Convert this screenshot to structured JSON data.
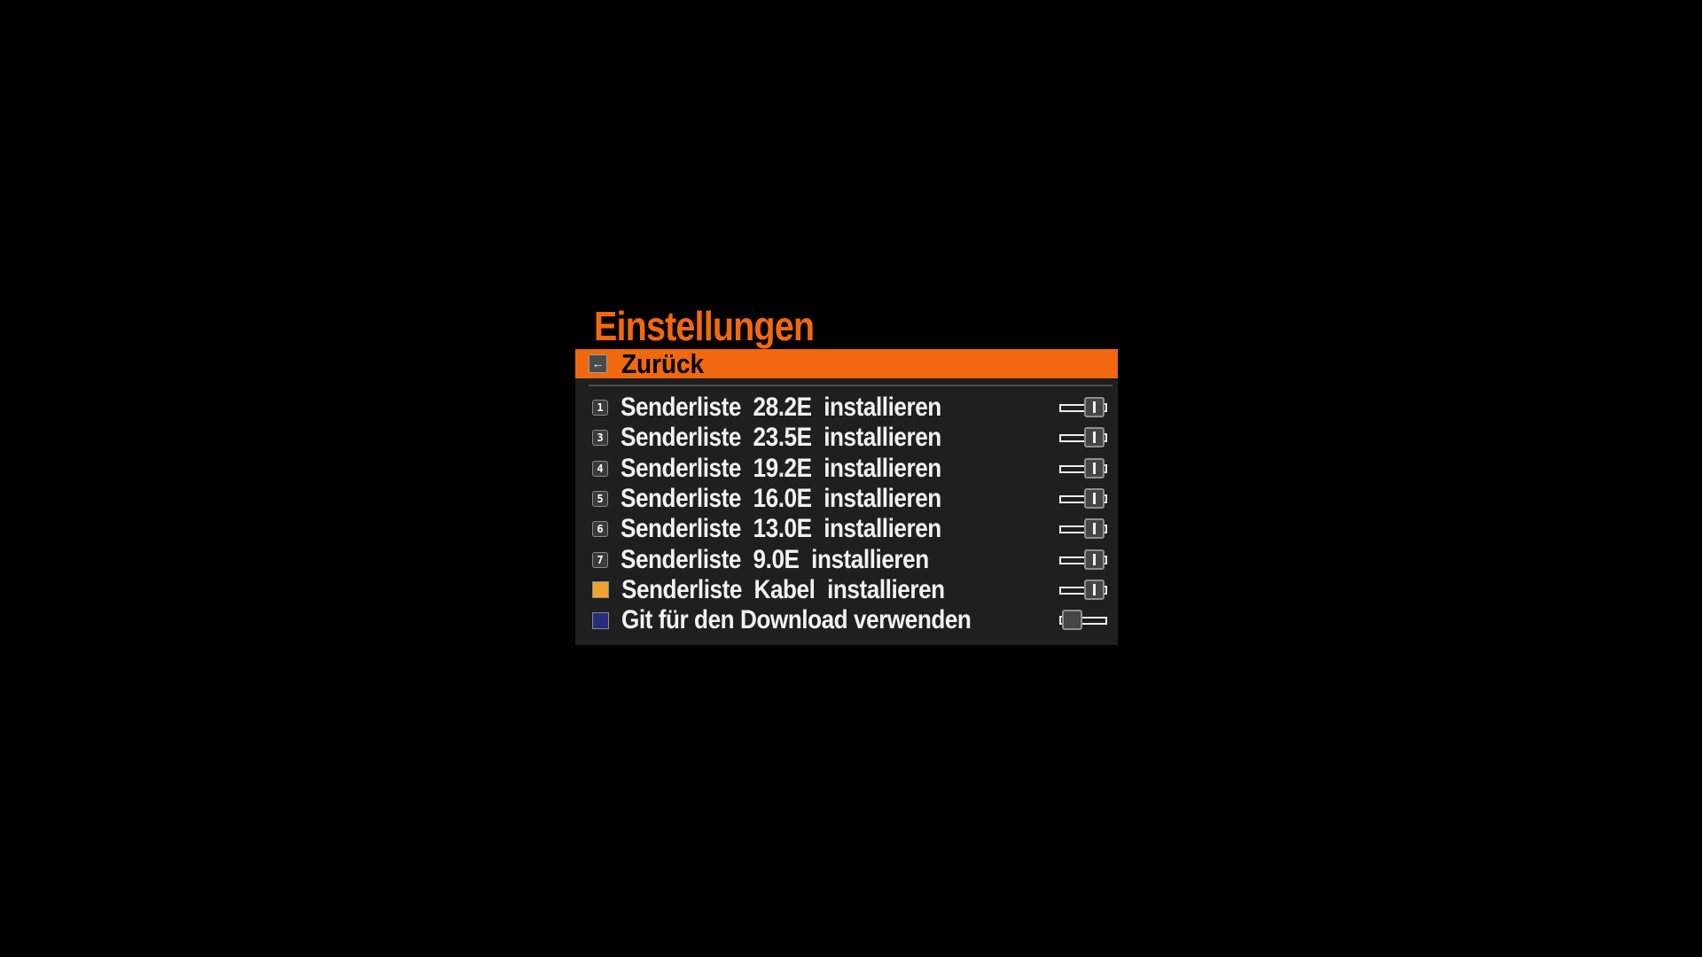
{
  "title": "Einstellungen",
  "header": {
    "label": "Zurück",
    "back_glyph": "←"
  },
  "colors": {
    "accent_orange": "#f2680f",
    "panel_bg": "#1f1f1f",
    "kabel_swatch": "#f0a42c",
    "git_swatch": "#272e7e"
  },
  "rows": [
    {
      "badge": "1",
      "label": "Senderliste  28.2E  installieren",
      "toggle_state": "on",
      "toggle_class": "toggle on"
    },
    {
      "badge": "3",
      "label": "Senderliste  23.5E  installieren",
      "toggle_state": "on",
      "toggle_class": "toggle on"
    },
    {
      "badge": "4",
      "label": "Senderliste  19.2E  installieren",
      "toggle_state": "on",
      "toggle_class": "toggle on"
    },
    {
      "badge": "5",
      "label": "Senderliste  16.0E  installieren",
      "toggle_state": "on",
      "toggle_class": "toggle on"
    },
    {
      "badge": "6",
      "label": "Senderliste  13.0E  installieren",
      "toggle_state": "on",
      "toggle_class": "toggle on"
    },
    {
      "badge": "7",
      "label": "Senderliste  9.0E  installieren",
      "toggle_state": "on",
      "toggle_class": "toggle on"
    },
    {
      "badge": "",
      "label": "Senderliste  Kabel  installieren",
      "toggle_state": "on",
      "toggle_class": "toggle on",
      "swatch_style": "background:#f0a42c"
    },
    {
      "badge": "",
      "label": "Git für den Download verwenden",
      "toggle_state": "off",
      "toggle_class": "toggle off",
      "swatch_style": "background:#272e7e"
    }
  ]
}
